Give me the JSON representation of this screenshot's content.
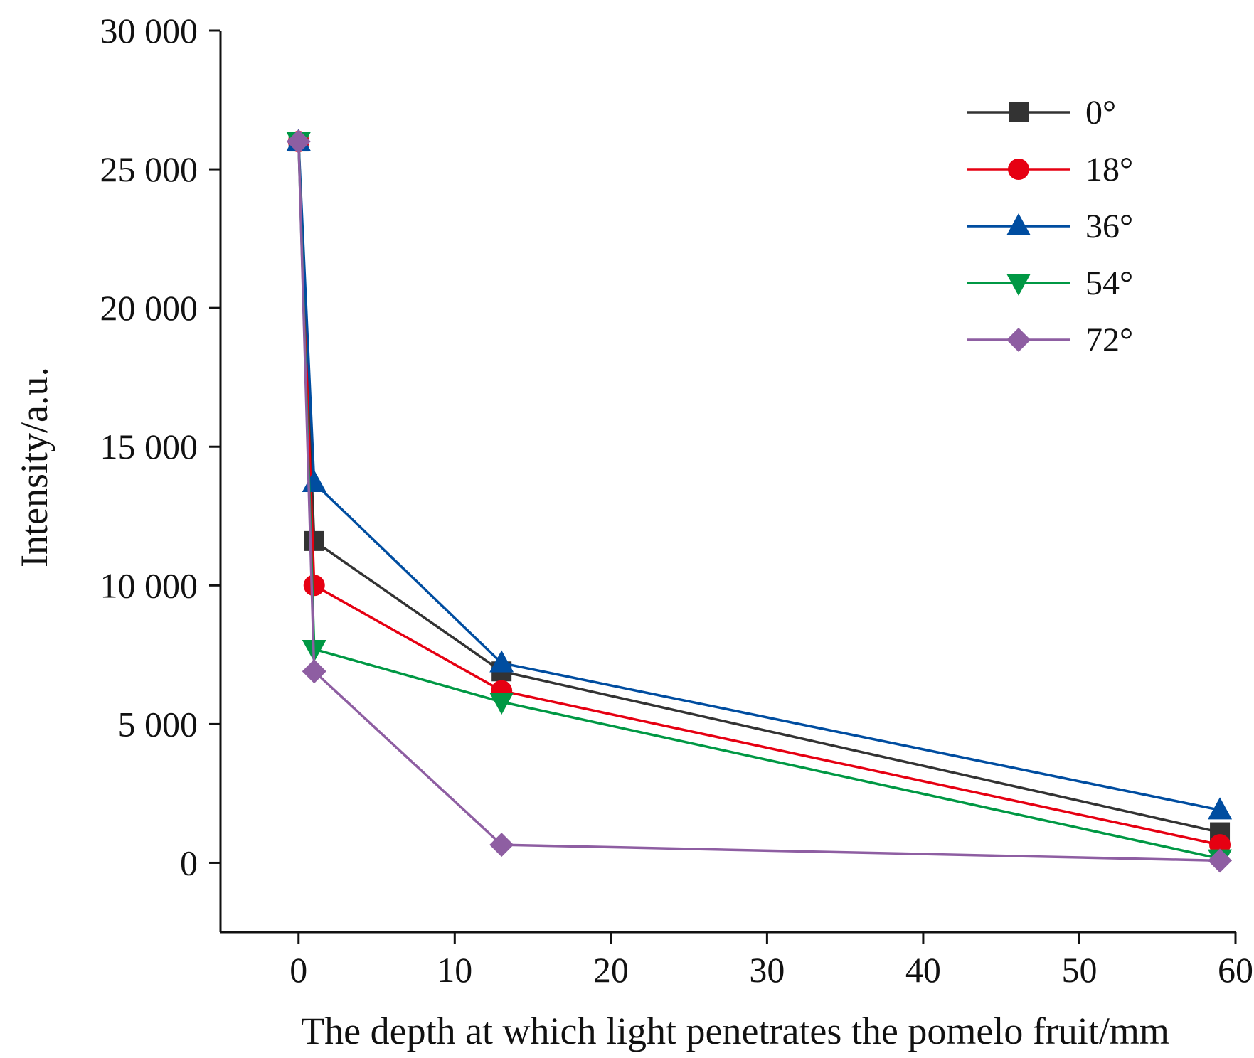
{
  "chart_data": {
    "type": "line",
    "title": "",
    "xlabel": "The depth at which light penetrates the pomelo fruit/mm",
    "ylabel": "Intensity/a.u.",
    "xlim": [
      -5,
      60
    ],
    "ylim": [
      -2500,
      30000
    ],
    "xticks": [
      0,
      10,
      20,
      30,
      40,
      50,
      60
    ],
    "xtick_labels": [
      "0",
      "10",
      "20",
      "30",
      "40",
      "50",
      "60"
    ],
    "yticks": [
      0,
      5000,
      10000,
      15000,
      20000,
      25000,
      30000
    ],
    "ytick_labels": [
      "0",
      "5 000",
      "10 000",
      "15 000",
      "20 000",
      "25 000",
      "30 000"
    ],
    "grid": false,
    "legend_position": "top-right",
    "x": [
      0,
      1,
      13,
      59
    ],
    "series": [
      {
        "name": "0°",
        "color": "#333333",
        "marker": "square",
        "values": [
          26000,
          11600,
          6900,
          1100
        ]
      },
      {
        "name": "18°",
        "color": "#e60012",
        "marker": "circle",
        "values": [
          26000,
          10000,
          6200,
          650
        ]
      },
      {
        "name": "36°",
        "color": "#004da0",
        "marker": "triangle-up",
        "values": [
          26000,
          13700,
          7200,
          1900
        ]
      },
      {
        "name": "54°",
        "color": "#009844",
        "marker": "triangle-down",
        "values": [
          26000,
          7700,
          5800,
          150
        ]
      },
      {
        "name": "72°",
        "color": "#8e5ea2",
        "marker": "diamond",
        "values": [
          26000,
          6900,
          650,
          80
        ]
      }
    ]
  }
}
